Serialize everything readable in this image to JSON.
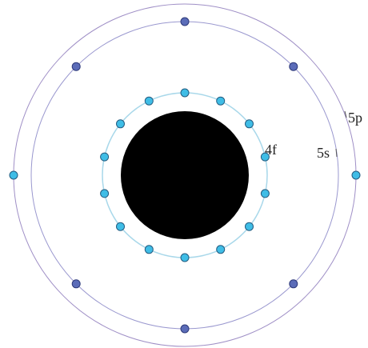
{
  "diagram": {
    "nucleus": {
      "color": "#000000"
    },
    "shells": [
      {
        "label": "4f",
        "ring_color": "#a9d8ea",
        "electron_fill": "#3fbde6",
        "electron_stroke": "#245c80",
        "electron_count": 14
      },
      {
        "label": "5s",
        "ring_color": "#9a98cf",
        "electron_fill": "#3fbde6",
        "electron_stroke": "#245c80",
        "electron_count": 2
      },
      {
        "label": "5p",
        "ring_color": "#9f8fc6",
        "electron_fill": "#5b6cb8",
        "electron_stroke": "#2e3a7a",
        "electron_count": 6
      }
    ]
  }
}
